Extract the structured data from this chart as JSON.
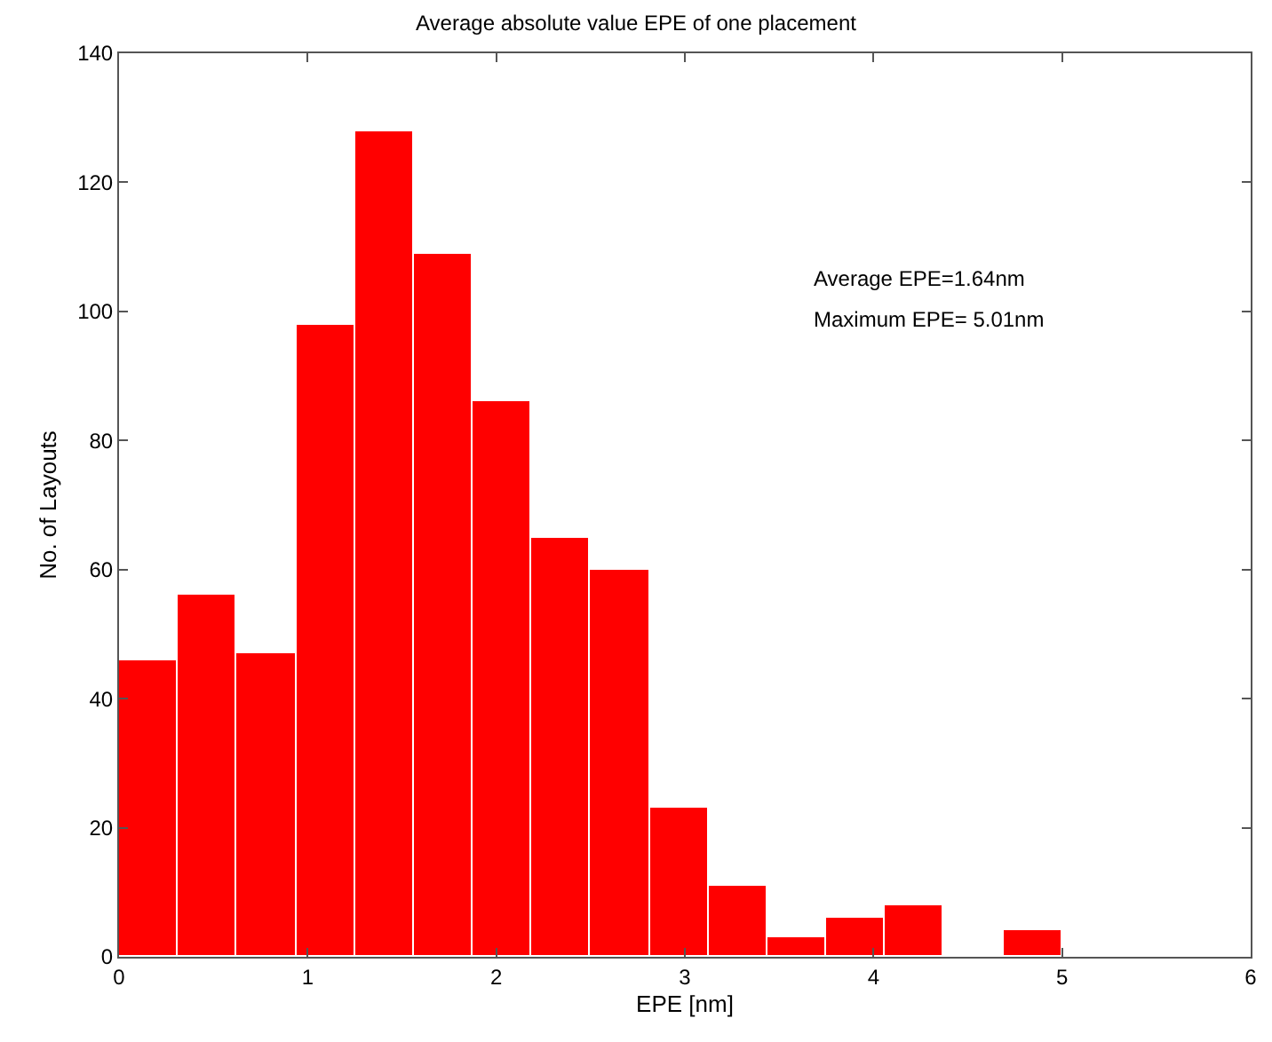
{
  "chart_data": {
    "type": "histogram",
    "title": "Average absolute value EPE of one placement",
    "xlabel": "EPE [nm]",
    "ylabel": "No. of Layouts",
    "bins": [
      0,
      0.3125,
      0.625,
      0.9375,
      1.25,
      1.5625,
      1.875,
      2.1875,
      2.5,
      2.8125,
      3.125,
      3.4375,
      3.75,
      4.0625,
      4.375,
      4.6875,
      5
    ],
    "values": [
      46,
      56,
      47,
      98,
      128,
      109,
      86,
      65,
      60,
      23,
      11,
      3,
      6,
      8,
      0,
      4
    ],
    "color": "#ff0000",
    "xlim": [
      0,
      6
    ],
    "xticks": [
      0,
      1,
      2,
      3,
      4,
      5,
      6
    ],
    "ylim": [
      0,
      140
    ],
    "yticks": [
      0,
      20,
      40,
      60,
      80,
      100,
      120,
      140
    ],
    "annotations": [
      "Average EPE=1.64nm",
      "Maximum EPE= 5.01nm"
    ]
  }
}
